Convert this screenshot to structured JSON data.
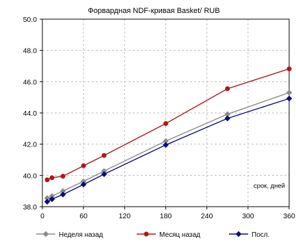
{
  "chart_data": {
    "type": "line",
    "title": "Форвардная NDF-кривая Basket/ RUB",
    "xlabel": "",
    "ylabel": "",
    "annotation": "срок, дней",
    "xlim": [
      0,
      360
    ],
    "ylim": [
      38.0,
      50.0
    ],
    "x_ticks": [
      "0",
      "60",
      "120",
      "180",
      "240",
      "300",
      "360"
    ],
    "y_ticks": [
      "38.0",
      "40.0",
      "42.0",
      "44.0",
      "46.0",
      "48.0",
      "50.0"
    ],
    "grid": true,
    "legend_position": "bottom",
    "series": [
      {
        "name": "Неделя назад",
        "color": "#8c8c8c",
        "marker": "diamond",
        "points": [
          [
            7,
            38.55
          ],
          [
            14,
            38.68
          ],
          [
            30,
            39.0
          ],
          [
            60,
            39.62
          ],
          [
            90,
            40.28
          ],
          [
            180,
            42.2
          ],
          [
            270,
            43.92
          ],
          [
            360,
            45.3
          ]
        ]
      },
      {
        "name": "Месяц назад",
        "color": "#b01818",
        "marker": "circle",
        "points": [
          [
            7,
            39.72
          ],
          [
            14,
            39.85
          ],
          [
            30,
            39.95
          ],
          [
            60,
            40.62
          ],
          [
            90,
            41.28
          ],
          [
            180,
            43.32
          ],
          [
            270,
            45.55
          ],
          [
            360,
            46.82
          ]
        ]
      },
      {
        "name": "Посл.",
        "color": "#0c0c80",
        "marker": "diamond",
        "points": [
          [
            7,
            38.32
          ],
          [
            14,
            38.48
          ],
          [
            30,
            38.78
          ],
          [
            60,
            39.42
          ],
          [
            90,
            40.08
          ],
          [
            180,
            41.95
          ],
          [
            270,
            43.65
          ],
          [
            360,
            44.92
          ]
        ]
      }
    ]
  }
}
